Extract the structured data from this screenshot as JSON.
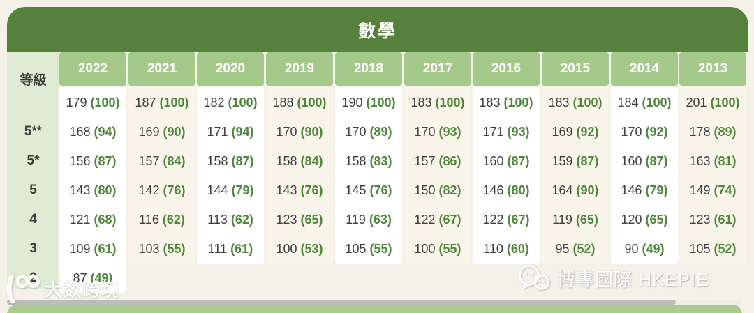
{
  "chart_data": {
    "type": "table",
    "title": "數學",
    "row_header_label": "等級",
    "columns": [
      "2022",
      "2021",
      "2020",
      "2019",
      "2018",
      "2017",
      "2016",
      "2015",
      "2014",
      "2013"
    ],
    "cell_format": "score (percentile)",
    "rows": [
      {
        "grade": "",
        "cells": [
          [
            179,
            100
          ],
          [
            187,
            100
          ],
          [
            182,
            100
          ],
          [
            188,
            100
          ],
          [
            190,
            100
          ],
          [
            183,
            100
          ],
          [
            183,
            100
          ],
          [
            183,
            100
          ],
          [
            184,
            100
          ],
          [
            201,
            100
          ]
        ]
      },
      {
        "grade": "5**",
        "cells": [
          [
            168,
            94
          ],
          [
            169,
            90
          ],
          [
            171,
            94
          ],
          [
            170,
            90
          ],
          [
            170,
            89
          ],
          [
            170,
            93
          ],
          [
            171,
            93
          ],
          [
            169,
            92
          ],
          [
            170,
            92
          ],
          [
            178,
            89
          ]
        ]
      },
      {
        "grade": "5*",
        "cells": [
          [
            156,
            87
          ],
          [
            157,
            84
          ],
          [
            158,
            87
          ],
          [
            158,
            84
          ],
          [
            158,
            83
          ],
          [
            157,
            86
          ],
          [
            160,
            87
          ],
          [
            159,
            87
          ],
          [
            160,
            87
          ],
          [
            163,
            81
          ]
        ]
      },
      {
        "grade": "5",
        "cells": [
          [
            143,
            80
          ],
          [
            142,
            76
          ],
          [
            144,
            79
          ],
          [
            143,
            76
          ],
          [
            145,
            76
          ],
          [
            150,
            82
          ],
          [
            146,
            80
          ],
          [
            164,
            90
          ],
          [
            146,
            79
          ],
          [
            149,
            74
          ]
        ]
      },
      {
        "grade": "4",
        "cells": [
          [
            121,
            68
          ],
          [
            116,
            62
          ],
          [
            113,
            62
          ],
          [
            123,
            65
          ],
          [
            119,
            63
          ],
          [
            122,
            67
          ],
          [
            122,
            67
          ],
          [
            119,
            65
          ],
          [
            120,
            65
          ],
          [
            123,
            61
          ]
        ]
      },
      {
        "grade": "3",
        "cells": [
          [
            109,
            61
          ],
          [
            103,
            55
          ],
          [
            111,
            61
          ],
          [
            100,
            53
          ],
          [
            105,
            55
          ],
          [
            100,
            55
          ],
          [
            110,
            60
          ],
          [
            95,
            52
          ],
          [
            90,
            49
          ],
          [
            105,
            52
          ]
        ]
      },
      {
        "grade": "2",
        "cells": [
          [
            87,
            49
          ],
          null,
          null,
          null,
          null,
          null,
          null,
          null,
          null,
          null
        ]
      }
    ]
  },
  "watermarks": {
    "bottom_left_text": "大数跨境",
    "bottom_right_text": "博專國際 HKEPIE"
  },
  "colors": {
    "title_bar_green": "#56813c",
    "year_header_green": "#a5c98b",
    "grade_column_green": "#dfebd2",
    "column_white": "#ffffff",
    "column_cream": "#faf5ea",
    "score_text": "#3f3f3f",
    "percentile_green": "#4e873b",
    "page_background": "#f4f1e9",
    "scrollbar_thumb": "#bdbdbd",
    "next_section_green": "#a9cb8f"
  }
}
